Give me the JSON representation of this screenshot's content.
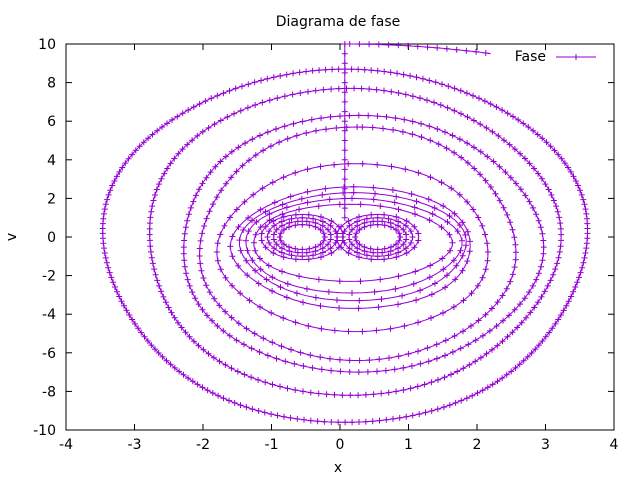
{
  "chart_data": {
    "type": "scatter",
    "title": "Diagrama de fase",
    "xlabel": "x",
    "ylabel": "v",
    "xlim": [
      -4,
      4
    ],
    "ylim": [
      -10,
      10
    ],
    "xticks": [
      -4,
      -3,
      -2,
      -1,
      0,
      1,
      2,
      3,
      4
    ],
    "yticks": [
      -10,
      -8,
      -6,
      -4,
      -2,
      0,
      2,
      4,
      6,
      8,
      10
    ],
    "grid": false,
    "legend_position": "top-right",
    "series": [
      {
        "name": "Fase",
        "color": "#9400d3",
        "marker": "plus",
        "line": true,
        "loops": [
          {
            "x_min": -3.45,
            "x_max": 3.6,
            "v_min": -9.6,
            "v_max": 8.7
          },
          {
            "x_min": -2.85,
            "x_max": 3.15,
            "v_min": -8.2,
            "v_max": 7.7
          },
          {
            "x_min": -2.35,
            "x_max": 2.9,
            "v_min": -7.0,
            "v_max": 6.3
          },
          {
            "x_min": -2.05,
            "x_max": 2.55,
            "v_min": -6.4,
            "v_max": 5.7
          },
          {
            "x_min": -1.75,
            "x_max": 2.2,
            "v_min": -4.9,
            "v_max": 3.8
          },
          {
            "x_min": -1.55,
            "x_max": 1.95,
            "v_min": -3.7,
            "v_max": 2.6
          },
          {
            "x_min": -1.45,
            "x_max": 1.85,
            "v_min": -3.3,
            "v_max": 2.3
          },
          {
            "x_min": -1.4,
            "x_max": 1.75,
            "v_min": -2.9,
            "v_max": 2.0
          },
          {
            "x_min": -1.3,
            "x_max": 1.6,
            "v_min": -2.3,
            "v_max": 1.7
          }
        ],
        "inner_lobes": [
          {
            "x_center": -0.55,
            "x_radius": 0.6,
            "v_radius": 1.3
          },
          {
            "x_center": 0.55,
            "x_radius": 0.6,
            "v_radius": 1.3
          }
        ],
        "spike": {
          "x": 0.07,
          "v_from": 1.0,
          "v_to": 10.0
        },
        "top_exit": {
          "x_from": 0.07,
          "v_from": 10.0,
          "x_to": 2.2,
          "v_to": 9.5
        }
      }
    ]
  }
}
